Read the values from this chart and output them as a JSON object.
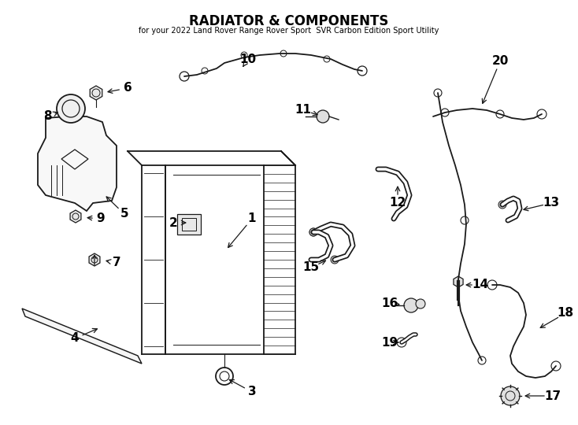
{
  "title": "RADIATOR & COMPONENTS",
  "subtitle": "for your 2022 Land Rover Range Rover Sport  SVR Carbon Edition Sport Utility",
  "background_color": "#ffffff",
  "line_color": "#1a1a1a",
  "text_color": "#000000",
  "fig_width": 7.34,
  "fig_height": 5.4,
  "dpi": 100
}
